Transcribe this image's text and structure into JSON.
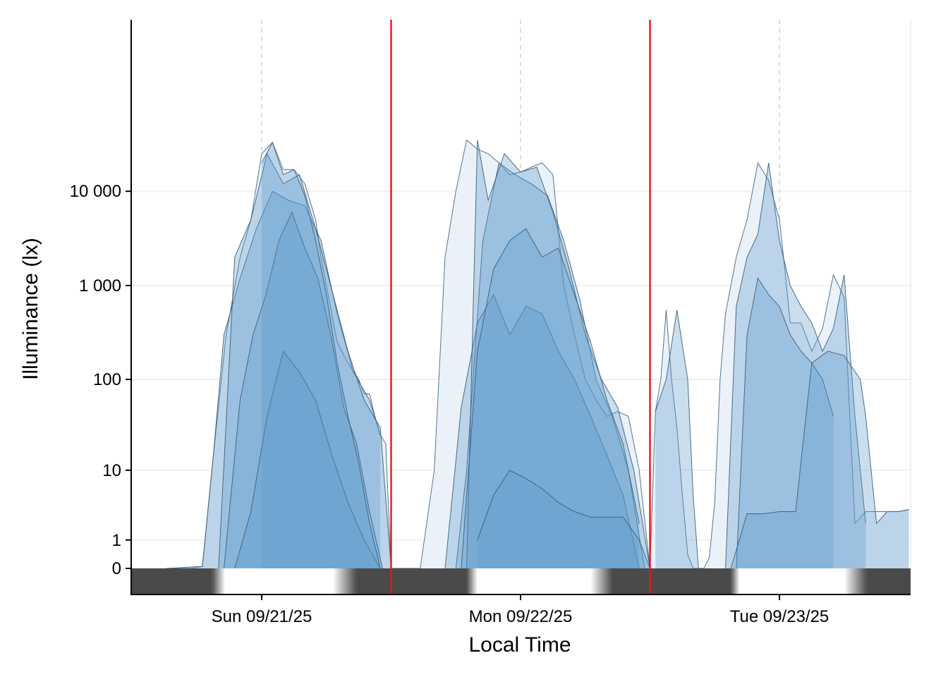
{
  "chart_data": {
    "type": "area",
    "title": "",
    "xlabel": "Local Time",
    "ylabel": "Illuminance (lx)",
    "yscale": "symlog",
    "y_ticks": [
      0,
      1,
      10,
      100,
      1000,
      10000
    ],
    "y_tick_labels": [
      "0",
      "1",
      "10",
      "100",
      "1 000",
      "10 000"
    ],
    "ylim": [
      0,
      60000
    ],
    "x_unit": "hours since Sun 09/21/25 00:00",
    "xlim": [
      -15,
      75
    ],
    "x_ticks": [
      0,
      24,
      48
    ],
    "x_tick_labels": [
      "Sun 09/21/25",
      "Mon 09/22/25",
      "Tue 09/23/25"
    ],
    "grid": true,
    "legend": "none",
    "day_boundaries": [
      12,
      36
    ],
    "colors": {
      "fill": "#5b97c9",
      "line": "#3a5e7a",
      "boundary": "#e8161b",
      "night": "#4a4a4a",
      "day": "#ffffff"
    },
    "photoperiod": [
      {
        "start": -15,
        "end": -4.6,
        "state": "night"
      },
      {
        "start": -4.6,
        "end": -3.4,
        "state": "dawn"
      },
      {
        "start": -3.4,
        "end": 6.6,
        "state": "day"
      },
      {
        "start": 6.6,
        "end": 8.8,
        "state": "dusk"
      },
      {
        "start": 8.8,
        "end": 19.0,
        "state": "night"
      },
      {
        "start": 19.0,
        "end": 20.0,
        "state": "dawn"
      },
      {
        "start": 20.0,
        "end": 30.5,
        "state": "day"
      },
      {
        "start": 30.5,
        "end": 32.5,
        "state": "dusk"
      },
      {
        "start": 32.5,
        "end": 43.5,
        "state": "night"
      },
      {
        "start": 43.5,
        "end": 44.3,
        "state": "dawn"
      },
      {
        "start": 44.3,
        "end": 54.0,
        "state": "day"
      },
      {
        "start": 54.0,
        "end": 56.1,
        "state": "dusk"
      },
      {
        "start": 56.1,
        "end": 60.3,
        "state": "night"
      }
    ],
    "envelope": {
      "x": [
        -8.8,
        -6.5,
        -5.5,
        -4.5,
        -3.3,
        -2,
        -1,
        0,
        1,
        2,
        3,
        4,
        5,
        5.5,
        6,
        7,
        8,
        9,
        9.5,
        10,
        10.5,
        11,
        11.5,
        12,
        13.3,
        14.7,
        16,
        17,
        18,
        19,
        20,
        21,
        22,
        23,
        24,
        25,
        26,
        27,
        28,
        29,
        30,
        31,
        32,
        33,
        34,
        35,
        36,
        36.5,
        37,
        37.5,
        38,
        38.5,
        39,
        39.5,
        40,
        40.5,
        41,
        41.5,
        42,
        42.5,
        43,
        44,
        45,
        46,
        47,
        47.5,
        48,
        48.5,
        49,
        50,
        51,
        52,
        53,
        54,
        55,
        56,
        57,
        58,
        59,
        60
      ],
      "y": [
        0,
        0,
        0.05,
        14,
        300,
        2000,
        5000,
        25000,
        33000,
        17000,
        17000,
        12000,
        5000,
        2000,
        1000,
        250,
        150,
        100,
        70,
        70,
        40,
        25,
        20,
        0,
        0,
        0,
        10,
        2000,
        10000,
        35000,
        28000,
        25000,
        20000,
        15000,
        16000,
        18000,
        20000,
        15000,
        1000,
        300,
        100,
        60,
        40,
        45,
        40,
        10,
        0,
        45,
        100,
        550,
        100,
        30,
        5,
        0.4,
        0,
        0,
        0,
        0.3,
        4,
        100,
        500,
        2000,
        5000,
        20000,
        13000,
        8000,
        5000,
        1500,
        400,
        400,
        200,
        350,
        1300,
        750,
        2,
        3,
        3,
        3,
        3,
        3.2
      ]
    },
    "series": [
      {
        "x": [
          -8.8,
          -5.5,
          -4.5,
          -3.5,
          -2,
          -0.5,
          1,
          2.5,
          4,
          5.5,
          7,
          8.5,
          10,
          11
        ],
        "y": [
          0,
          0.05,
          14,
          300,
          1200,
          4000,
          10000,
          8000,
          7000,
          3000,
          500,
          120,
          60,
          25
        ]
      },
      {
        "x": [
          -4,
          -2.5,
          -1,
          0.5,
          2,
          3.5,
          5,
          6.5,
          8,
          9.5,
          11,
          12
        ],
        "y": [
          0,
          2000,
          5000,
          25000,
          12000,
          15000,
          4000,
          900,
          200,
          60,
          30,
          0
        ]
      },
      {
        "x": [
          -3.5,
          -2,
          -0.8,
          0.4,
          1.6,
          2.8,
          4,
          5.2,
          6.4,
          7.6,
          8.8,
          10,
          11.2
        ],
        "y": [
          0,
          60,
          300,
          800,
          3000,
          6000,
          2500,
          1200,
          300,
          50,
          20,
          3,
          0
        ]
      },
      {
        "x": [
          -2.5,
          -1,
          0.5,
          2,
          3.5,
          5,
          6.5,
          8,
          9.5,
          11
        ],
        "y": [
          0,
          3,
          40,
          200,
          120,
          60,
          15,
          4,
          1,
          0
        ]
      },
      {
        "x": [
          0,
          1,
          2,
          3,
          4,
          5,
          6,
          7,
          8,
          9,
          10,
          11
        ],
        "y": [
          20000,
          33000,
          15000,
          17000,
          9000,
          3000,
          800,
          150,
          40,
          12,
          2,
          0
        ]
      },
      {
        "x": [
          18,
          19,
          20.5,
          22,
          23.5,
          25,
          26.5,
          28,
          29.5,
          31,
          32.5,
          34,
          35.5
        ],
        "y": [
          0,
          10,
          3000,
          20000,
          15000,
          12000,
          9000,
          3000,
          700,
          100,
          40,
          10,
          0
        ]
      },
      {
        "x": [
          17,
          18.5,
          20,
          21.5,
          23,
          24.5,
          26,
          27.5,
          29,
          30.5,
          32,
          33.5,
          35
        ],
        "y": [
          0,
          50,
          400,
          800,
          300,
          600,
          500,
          200,
          100,
          40,
          15,
          5,
          0
        ]
      },
      {
        "x": [
          19,
          20,
          21,
          22.5,
          24,
          25.5,
          27,
          28.5,
          30,
          31.5,
          33,
          34.5,
          36
        ],
        "y": [
          0,
          35000,
          8000,
          25000,
          16000,
          18000,
          6000,
          1500,
          300,
          100,
          50,
          10,
          0
        ]
      },
      {
        "x": [
          18.5,
          20,
          21.5,
          23,
          24.5,
          26,
          27.5,
          29,
          30.5,
          32,
          33.5,
          35
        ],
        "y": [
          0,
          200,
          1500,
          3000,
          4000,
          2000,
          2500,
          800,
          250,
          60,
          20,
          2
        ]
      },
      {
        "x": [
          20,
          21.5,
          23,
          24.5,
          26,
          27.5,
          29,
          30.5,
          32,
          33.5,
          35,
          36
        ],
        "y": [
          1,
          5,
          10,
          8,
          6,
          4,
          3,
          2.5,
          2.5,
          2.5,
          1,
          0
        ]
      },
      {
        "x": [
          36.5,
          37.5,
          38.5,
          39.5,
          40,
          40.5
        ],
        "y": [
          45,
          100,
          550,
          100,
          5,
          0
        ]
      },
      {
        "x": [
          43,
          44,
          45,
          46,
          47,
          48,
          49,
          50,
          51,
          52,
          53,
          54,
          55,
          56
        ],
        "y": [
          0,
          600,
          2000,
          3500,
          20000,
          3000,
          1000,
          600,
          400,
          200,
          350,
          1300,
          40,
          2
        ]
      },
      {
        "x": [
          44,
          45,
          46,
          47,
          48,
          49,
          50,
          51,
          52,
          53
        ],
        "y": [
          0,
          300,
          1200,
          800,
          600,
          300,
          200,
          150,
          100,
          40
        ]
      },
      {
        "x": [
          43.5,
          45,
          46.5,
          48,
          49.5,
          51,
          52.5,
          54,
          55.5,
          56,
          57,
          58,
          59,
          60
        ],
        "y": [
          0,
          2.8,
          2.8,
          3,
          3,
          150,
          200,
          180,
          100,
          40,
          2,
          3,
          3,
          3.2
        ]
      }
    ]
  }
}
